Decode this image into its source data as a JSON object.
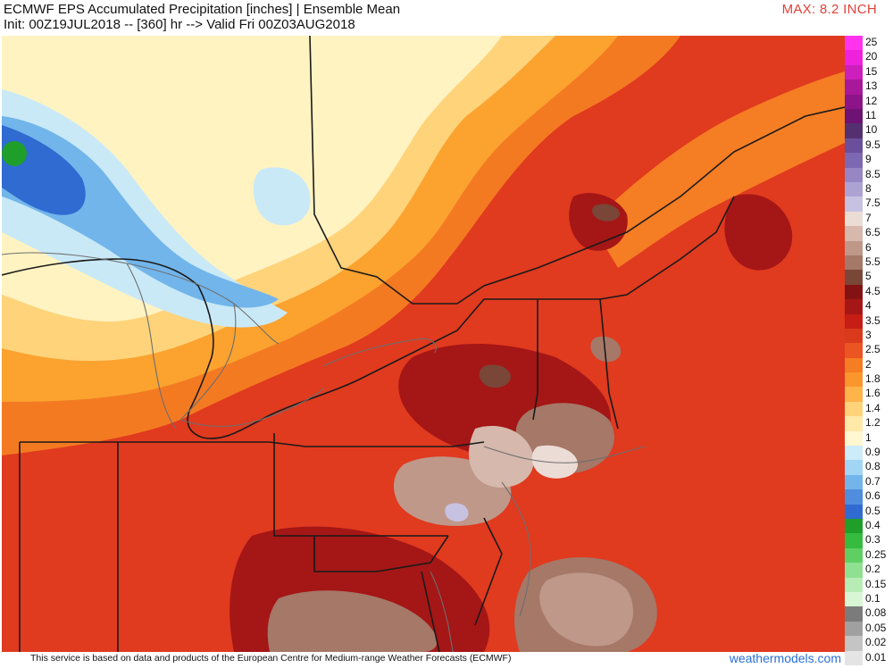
{
  "header": {
    "title": "ECMWF EPS Accumulated Precipitation [inches] | Ensemble Mean",
    "subtitle": "Init: 00Z19JUL2018 -- [360] hr --> Valid Fri 00Z03AUG2018",
    "max_label": "MAX: 8.2 INCH"
  },
  "legend": {
    "unit": "inches",
    "items": [
      {
        "label": "25",
        "color": "#ff33ee"
      },
      {
        "label": "20",
        "color": "#ee22dd"
      },
      {
        "label": "15",
        "color": "#cc1fbb"
      },
      {
        "label": "13",
        "color": "#a8189a"
      },
      {
        "label": "12",
        "color": "#8c1488"
      },
      {
        "label": "11",
        "color": "#6e1273"
      },
      {
        "label": "10",
        "color": "#553070"
      },
      {
        "label": "9.5",
        "color": "#6a4f9c"
      },
      {
        "label": "9",
        "color": "#7d68b2"
      },
      {
        "label": "8.5",
        "color": "#9686c4"
      },
      {
        "label": "8",
        "color": "#ada3d3"
      },
      {
        "label": "7.5",
        "color": "#c8c2e2"
      },
      {
        "label": "7",
        "color": "#ecdcd6"
      },
      {
        "label": "6.5",
        "color": "#d6b8ac"
      },
      {
        "label": "6",
        "color": "#bf988a"
      },
      {
        "label": "5.5",
        "color": "#a57868"
      },
      {
        "label": "5",
        "color": "#7a4637"
      },
      {
        "label": "4.5",
        "color": "#831313"
      },
      {
        "label": "4",
        "color": "#a51616"
      },
      {
        "label": "3.5",
        "color": "#c61d15"
      },
      {
        "label": "3",
        "color": "#d93a1c"
      },
      {
        "label": "2.5",
        "color": "#ea5521"
      },
      {
        "label": "2",
        "color": "#f57d23"
      },
      {
        "label": "1.8",
        "color": "#fb962c"
      },
      {
        "label": "1.6",
        "color": "#ffb34b"
      },
      {
        "label": "1.4",
        "color": "#ffd37a"
      },
      {
        "label": "1.2",
        "color": "#ffe9a8"
      },
      {
        "label": "1",
        "color": "#fff7cf"
      },
      {
        "label": "0.9",
        "color": "#cdebf8"
      },
      {
        "label": "0.8",
        "color": "#a1d5f4"
      },
      {
        "label": "0.7",
        "color": "#72b5ea"
      },
      {
        "label": "0.6",
        "color": "#4e8edd"
      },
      {
        "label": "0.5",
        "color": "#2f6bd1"
      },
      {
        "label": "0.4",
        "color": "#1f9f2a"
      },
      {
        "label": "0.3",
        "color": "#35bb3d"
      },
      {
        "label": "0.25",
        "color": "#5fcf63"
      },
      {
        "label": "0.2",
        "color": "#8fe090"
      },
      {
        "label": "0.15",
        "color": "#b7ecb5"
      },
      {
        "label": "0.1",
        "color": "#d8f6d5"
      },
      {
        "label": "0.08",
        "color": "#7b7b7b"
      },
      {
        "label": "0.05",
        "color": "#a0a0a0"
      },
      {
        "label": "0.02",
        "color": "#c4c4c4"
      },
      {
        "label": "0.01",
        "color": "#e4e4e4"
      }
    ]
  },
  "footer": {
    "disclaimer": "This service is based on data and products of the European Centre for Medium-range Weather Forecasts (ECMWF)",
    "brand": "weathermodels.com"
  }
}
